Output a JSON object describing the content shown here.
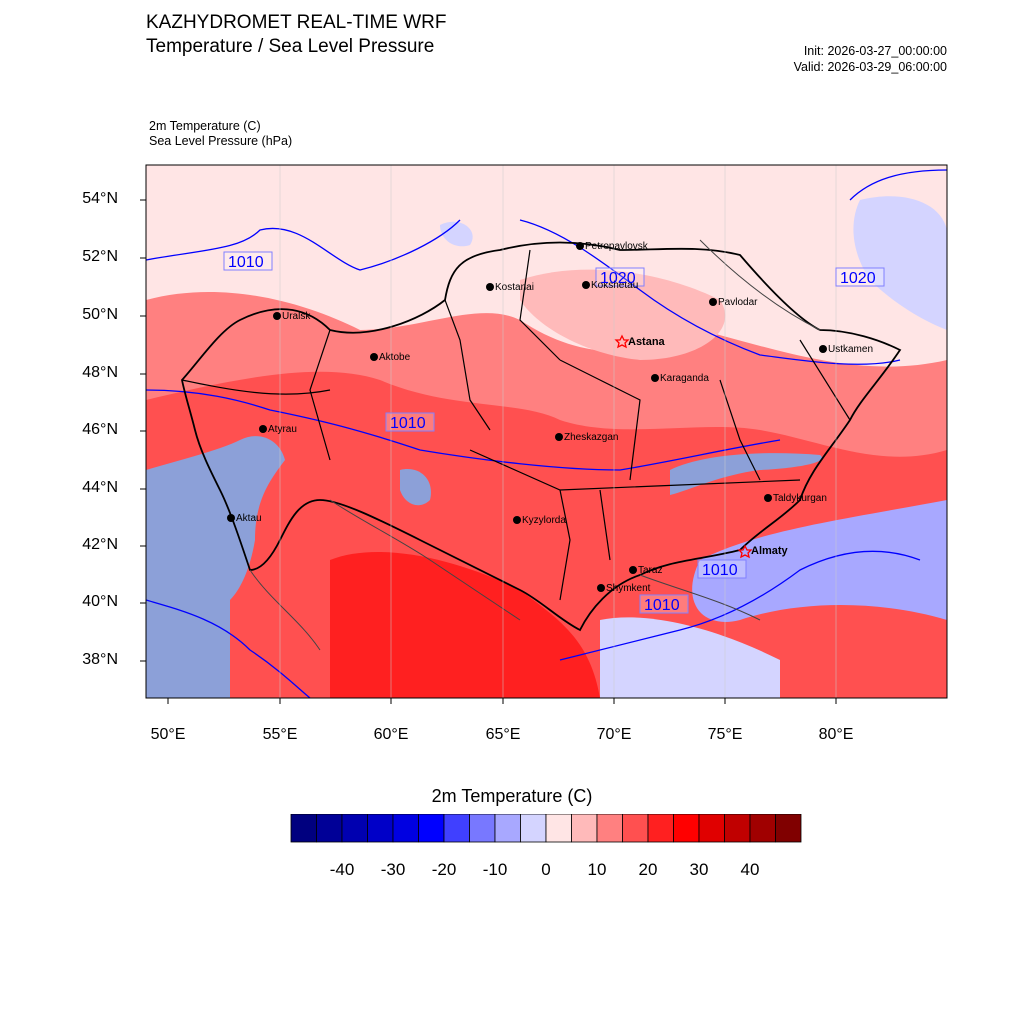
{
  "header": {
    "title_line1": "KAZHYDROMET REAL-TIME WRF",
    "title_line2": "Temperature / Sea Level Pressure",
    "init": "Init: 2026-03-27_00:00:00",
    "valid": "Valid: 2026-03-29_06:00:00",
    "var1": "2m Temperature   (C)",
    "var2": "Sea Level Pressure   (hPa)"
  },
  "map": {
    "lat_labels": [
      "54°N",
      "52°N",
      "50°N",
      "48°N",
      "46°N",
      "44°N",
      "42°N",
      "40°N",
      "38°N"
    ],
    "lon_labels": [
      "50°E",
      "55°E",
      "60°E",
      "65°E",
      "70°E",
      "75°E",
      "80°E"
    ],
    "cities": [
      "Petropavlovsk",
      "Kostanai",
      "Kokshetau",
      "Pavlodar",
      "Uralsk",
      "Aktobe",
      "Astana",
      "Ustkamen",
      "Karaganda",
      "Atyrau",
      "Zheskazgan",
      "Aktau",
      "Kyzylorda",
      "Taldykurgan",
      "Almaty",
      "Taraz",
      "Shymkent"
    ],
    "isobar_labels": [
      "1010",
      "1020",
      "1020",
      "1010",
      "1010",
      "1010"
    ],
    "colors": {
      "warm_light": "#ffe5e5",
      "warm_mid": "#ff8080",
      "warm_strong": "#ff5050",
      "warm_hot": "#ff2020",
      "cool": "#d4d4ff",
      "water": "#8ca0d8",
      "isobar": "#0000ff"
    }
  },
  "colorbar": {
    "title": "2m Temperature  (C)",
    "labels": [
      "-40",
      "-30",
      "-20",
      "-10",
      "0",
      "10",
      "20",
      "30",
      "40"
    ],
    "colors": [
      "#00007f",
      "#000097",
      "#0000b0",
      "#0000c8",
      "#0000e1",
      "#0000ff",
      "#4040ff",
      "#7878ff",
      "#a8a8ff",
      "#d4d4ff",
      "#ffe5e5",
      "#ffbaba",
      "#ff8080",
      "#ff5050",
      "#ff2020",
      "#ff0000",
      "#e00000",
      "#c00000",
      "#a00000",
      "#800000"
    ]
  }
}
